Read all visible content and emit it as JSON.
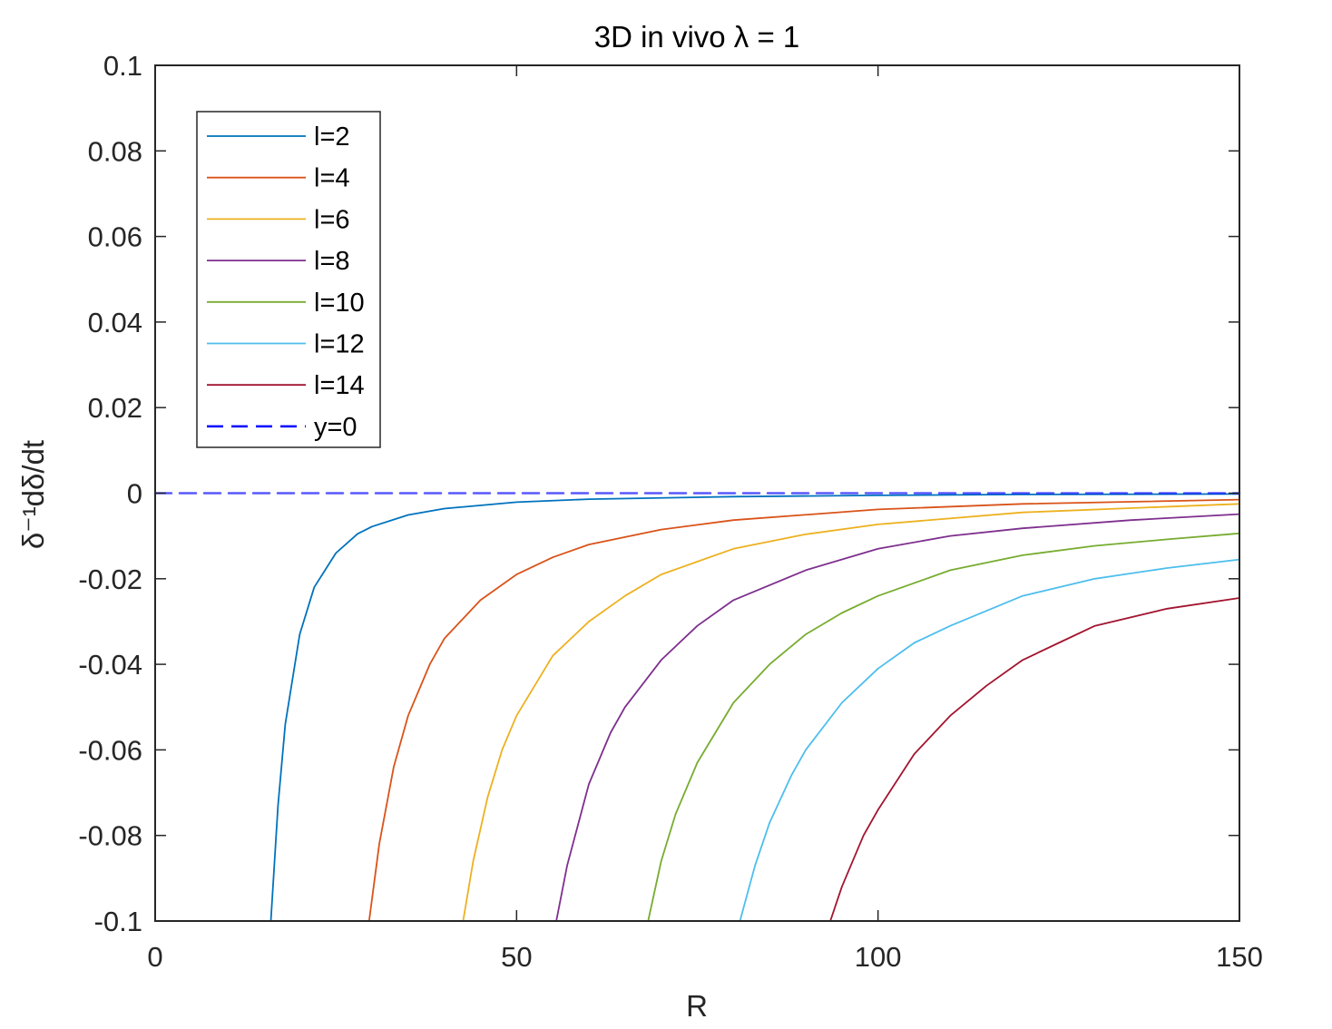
{
  "chart_data": {
    "type": "line",
    "title": "3D in vivo λ = 1",
    "xlabel": "R",
    "ylabel": "δ⁻¹dδ/dt",
    "xlim": [
      0,
      150
    ],
    "ylim": [
      -0.1,
      0.1
    ],
    "xticks": [
      0,
      50,
      100,
      150
    ],
    "xtick_labels": [
      "0",
      "50",
      "100",
      "150"
    ],
    "yticks": [
      0.1,
      0.08,
      0.06,
      0.04,
      0.02,
      0,
      -0.02,
      -0.04,
      -0.06,
      -0.08,
      -0.1
    ],
    "ytick_labels": [
      "0.1",
      "0.08",
      "0.06",
      "0.04",
      "0.02",
      "0",
      "-0.02",
      "-0.04",
      "-0.06",
      "-0.08",
      "-0.1"
    ],
    "grid": false,
    "legend_position": "top-left",
    "series": [
      {
        "name": "l=2",
        "color": "#0072BD",
        "x": [
          16,
          17,
          18,
          20,
          22,
          25,
          28,
          30,
          35,
          40,
          50,
          60,
          80,
          100,
          120,
          150
        ],
        "y": [
          -0.1,
          -0.073,
          -0.054,
          -0.033,
          -0.022,
          -0.014,
          -0.0095,
          -0.0078,
          -0.0051,
          -0.0036,
          -0.0021,
          -0.0014,
          -0.0008,
          -0.0005,
          -0.0003,
          -0.0002
        ]
      },
      {
        "name": "l=4",
        "color": "#D95319",
        "x": [
          29.6,
          31,
          33,
          35,
          38,
          40,
          45,
          50,
          55,
          60,
          70,
          80,
          100,
          120,
          150
        ],
        "y": [
          -0.1,
          -0.082,
          -0.064,
          -0.052,
          -0.04,
          -0.034,
          -0.025,
          -0.019,
          -0.015,
          -0.012,
          -0.0085,
          -0.0063,
          -0.0038,
          -0.0025,
          -0.0015
        ]
      },
      {
        "name": "l=6",
        "color": "#EDB120",
        "x": [
          42.6,
          44,
          46,
          48,
          50,
          55,
          60,
          65,
          70,
          80,
          90,
          100,
          120,
          150
        ],
        "y": [
          -0.1,
          -0.086,
          -0.071,
          -0.06,
          -0.052,
          -0.038,
          -0.03,
          -0.024,
          -0.019,
          -0.013,
          -0.0096,
          -0.0073,
          -0.0045,
          -0.0025
        ]
      },
      {
        "name": "l=8",
        "color": "#7E2F8E",
        "x": [
          55.5,
          57,
          60,
          63,
          65,
          70,
          75,
          80,
          90,
          100,
          110,
          120,
          135,
          150
        ],
        "y": [
          -0.1,
          -0.087,
          -0.068,
          -0.056,
          -0.05,
          -0.039,
          -0.031,
          -0.025,
          -0.018,
          -0.013,
          -0.01,
          -0.0082,
          -0.0063,
          -0.0049
        ]
      },
      {
        "name": "l=10",
        "color": "#77AC30",
        "x": [
          68.2,
          70,
          72,
          75,
          80,
          85,
          90,
          95,
          100,
          110,
          120,
          130,
          140,
          150
        ],
        "y": [
          -0.1,
          -0.086,
          -0.075,
          -0.063,
          -0.049,
          -0.04,
          -0.033,
          -0.028,
          -0.024,
          -0.018,
          -0.0145,
          -0.0123,
          -0.0108,
          -0.0094
        ]
      },
      {
        "name": "l=12",
        "color": "#4DBEEE",
        "x": [
          80.9,
          83,
          85,
          88,
          90,
          95,
          100,
          105,
          110,
          120,
          130,
          140,
          150
        ],
        "y": [
          -0.1,
          -0.087,
          -0.077,
          -0.066,
          -0.06,
          -0.049,
          -0.041,
          -0.035,
          -0.031,
          -0.024,
          -0.02,
          -0.0175,
          -0.0155
        ]
      },
      {
        "name": "l=14",
        "color": "#A2142F",
        "x": [
          93.4,
          95,
          98,
          100,
          105,
          110,
          115,
          120,
          125,
          130,
          140,
          150
        ],
        "y": [
          -0.1,
          -0.092,
          -0.08,
          -0.074,
          -0.061,
          -0.052,
          -0.045,
          -0.039,
          -0.035,
          -0.031,
          -0.027,
          -0.0245
        ]
      },
      {
        "name": "y=0",
        "color": "#0000FF",
        "style": "dashed",
        "x": [
          0,
          150
        ],
        "y": [
          0,
          0
        ]
      }
    ]
  }
}
